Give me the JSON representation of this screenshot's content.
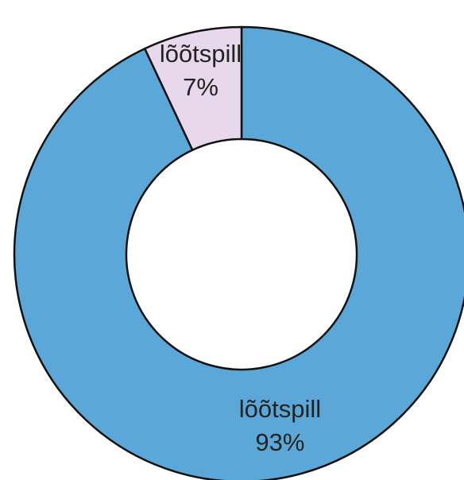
{
  "chart_data": {
    "type": "donut",
    "categories": [
      "lõõtspill",
      "lõõtspill"
    ],
    "values": [
      93,
      7
    ],
    "value_labels": [
      "93%",
      "7%"
    ],
    "colors": [
      "#5ba8d8",
      "#e8d8ec"
    ]
  }
}
